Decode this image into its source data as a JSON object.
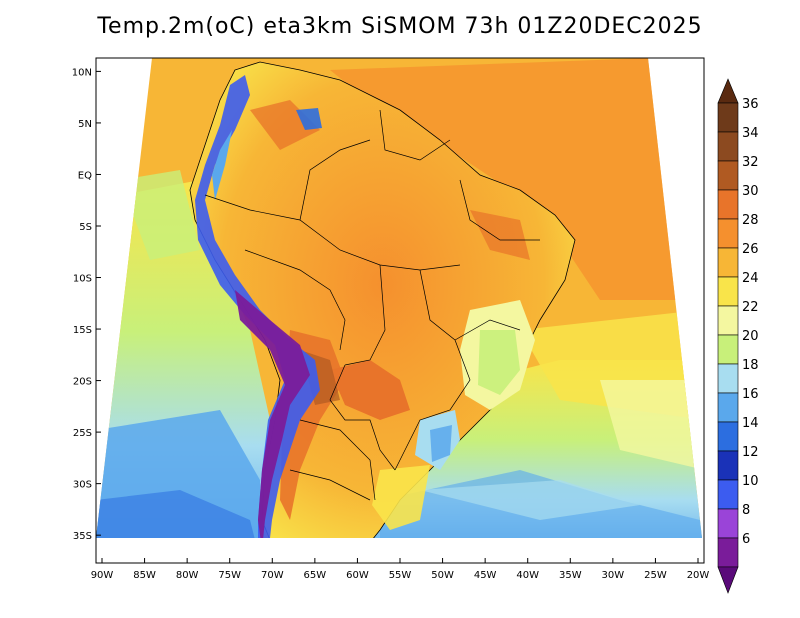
{
  "title": "Temp.2m(oC) eta3km SiSMOM 73h 01Z20DEC2025",
  "map": {
    "type": "filled-contour-map",
    "variable": "2 m air temperature",
    "units": "oC",
    "region": "South America",
    "lon_range": [
      -90,
      -20
    ],
    "lat_range": [
      -37,
      11
    ],
    "lat_ticks": [
      {
        "label": "10N",
        "lat": 10
      },
      {
        "label": "5N",
        "lat": 5
      },
      {
        "label": "EQ",
        "lat": 0
      },
      {
        "label": "5S",
        "lat": -5
      },
      {
        "label": "10S",
        "lat": -10
      },
      {
        "label": "15S",
        "lat": -15
      },
      {
        "label": "20S",
        "lat": -20
      },
      {
        "label": "25S",
        "lat": -25
      },
      {
        "label": "30S",
        "lat": -30
      },
      {
        "label": "35S",
        "lat": -35
      }
    ],
    "lon_ticks": [
      {
        "label": "90W",
        "lon": -90
      },
      {
        "label": "85W",
        "lon": -85
      },
      {
        "label": "80W",
        "lon": -80
      },
      {
        "label": "75W",
        "lon": -75
      },
      {
        "label": "70W",
        "lon": -70
      },
      {
        "label": "65W",
        "lon": -65
      },
      {
        "label": "60W",
        "lon": -60
      },
      {
        "label": "55W",
        "lon": -55
      },
      {
        "label": "50W",
        "lon": -50
      },
      {
        "label": "45W",
        "lon": -45
      },
      {
        "label": "40W",
        "lon": -40
      },
      {
        "label": "35W",
        "lon": -35
      },
      {
        "label": "30W",
        "lon": -30
      },
      {
        "label": "25W",
        "lon": -25
      },
      {
        "label": "20W",
        "lon": -20
      }
    ]
  },
  "colorbar": {
    "levels": [
      {
        "label": "36",
        "value": 36,
        "color": "#6e3a1a"
      },
      {
        "label": "34",
        "value": 34,
        "color": "#8c4a20"
      },
      {
        "label": "32",
        "value": 32,
        "color": "#b05a22"
      },
      {
        "label": "30",
        "value": 30,
        "color": "#e8742a"
      },
      {
        "label": "28",
        "value": 28,
        "color": "#f5902e"
      },
      {
        "label": "26",
        "value": 26,
        "color": "#f7b636"
      },
      {
        "label": "24",
        "value": 24,
        "color": "#f9e44a"
      },
      {
        "label": "22",
        "value": 22,
        "color": "#f4f7a0"
      },
      {
        "label": "20",
        "value": 20,
        "color": "#c8f07a"
      },
      {
        "label": "18",
        "value": 18,
        "color": "#a8ddf0"
      },
      {
        "label": "16",
        "value": 16,
        "color": "#5aa8ec"
      },
      {
        "label": "14",
        "value": 14,
        "color": "#2c6ee0"
      },
      {
        "label": "12",
        "value": 12,
        "color": "#1a32b8"
      },
      {
        "label": "10",
        "value": 10,
        "color": "#3c5cf0"
      },
      {
        "label": "8",
        "value": 8,
        "color": "#9a44d8"
      },
      {
        "label": "6",
        "value": 6,
        "color": "#7a1c9a"
      }
    ],
    "top_triangle_color": "#5a2a10",
    "bottom_triangle_color": "#5a0a7a"
  }
}
